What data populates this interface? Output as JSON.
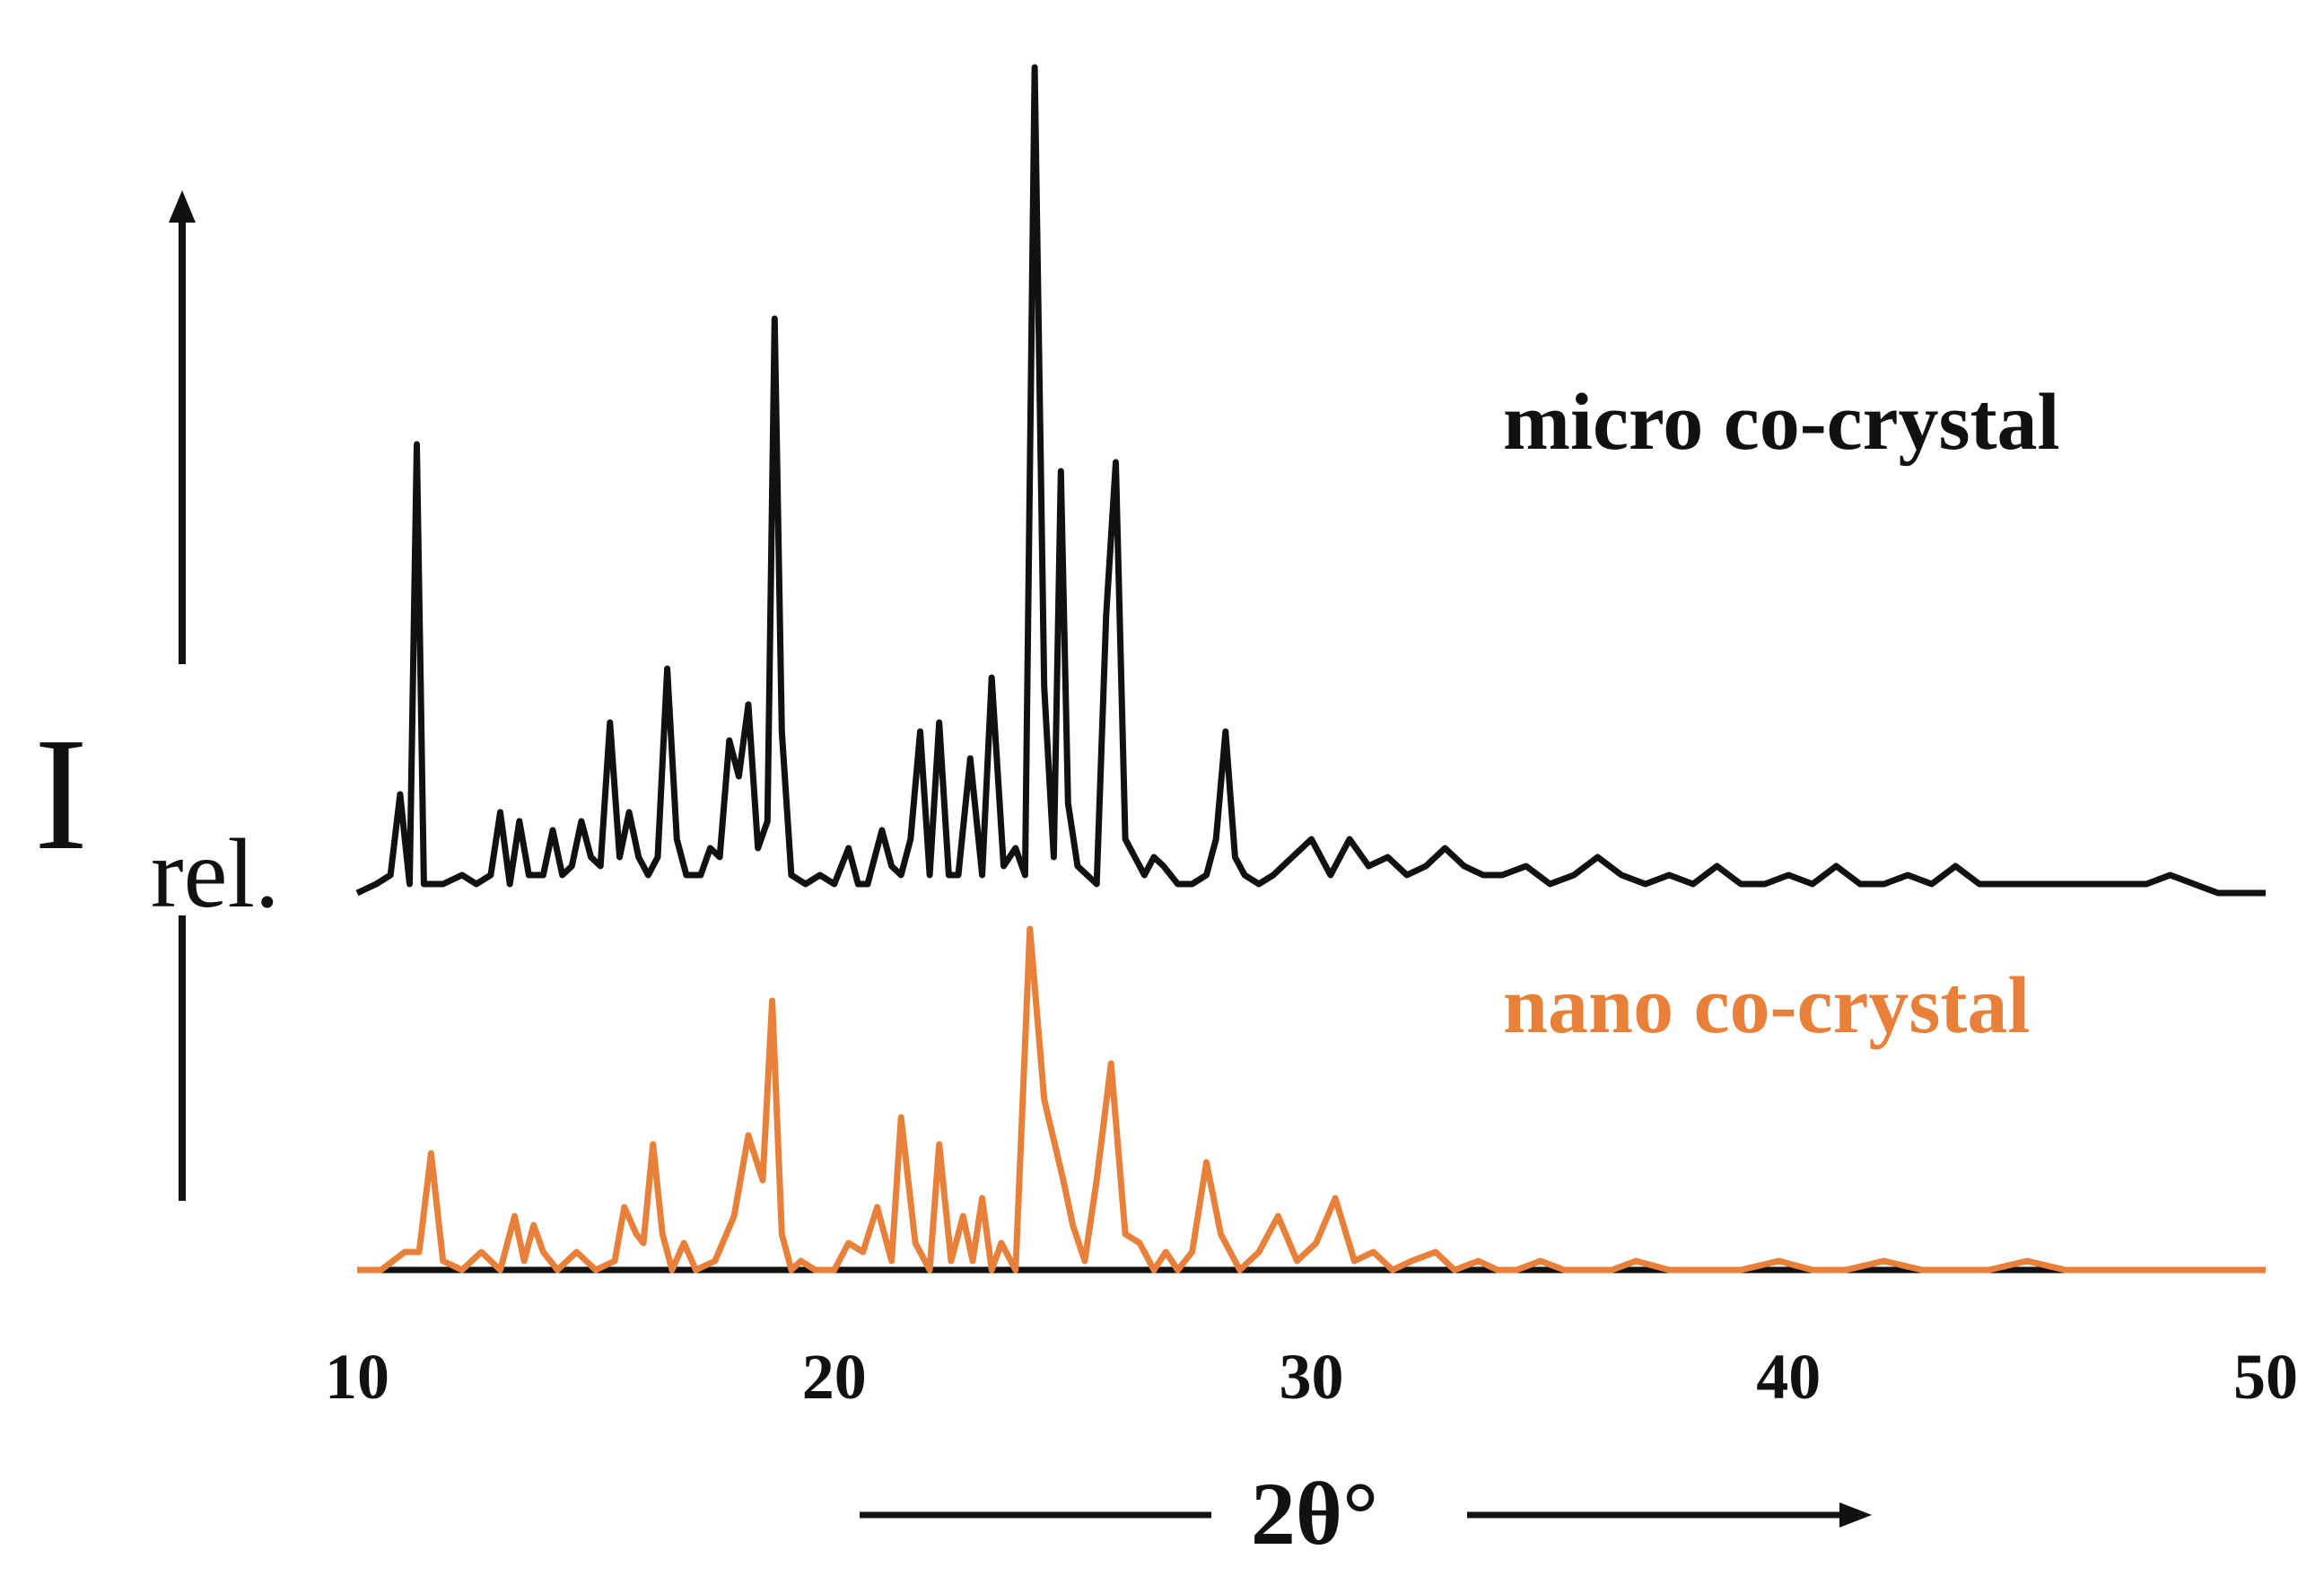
{
  "chart_data": {
    "type": "line",
    "title": "",
    "xlabel": "2θ°",
    "ylabel": {
      "main": "I",
      "sub": "rel."
    },
    "xlim": [
      10,
      50
    ],
    "xticks": [
      "10",
      "20",
      "30",
      "40",
      "50"
    ],
    "xtick_values": [
      10,
      20,
      30,
      40,
      50
    ],
    "grid": false,
    "legend_placement": "inline-right",
    "series": [
      {
        "name": "micro co-crystal",
        "color": "#111111",
        "x": [
          10.0,
          10.4,
          10.7,
          10.9,
          11.1,
          11.25,
          11.4,
          11.6,
          11.8,
          12.2,
          12.5,
          12.8,
          13.0,
          13.2,
          13.4,
          13.6,
          13.9,
          14.1,
          14.3,
          14.5,
          14.7,
          14.9,
          15.1,
          15.3,
          15.5,
          15.7,
          15.9,
          16.1,
          16.3,
          16.5,
          16.7,
          16.9,
          17.2,
          17.4,
          17.6,
          17.8,
          18.0,
          18.2,
          18.4,
          18.6,
          18.75,
          18.9,
          19.1,
          19.4,
          19.7,
          20.0,
          20.3,
          20.5,
          20.7,
          21.0,
          21.2,
          21.4,
          21.6,
          21.8,
          22.0,
          22.2,
          22.4,
          22.6,
          22.85,
          23.1,
          23.3,
          23.55,
          23.8,
          24.0,
          24.2,
          24.4,
          24.6,
          24.75,
          24.9,
          25.1,
          25.3,
          25.5,
          25.7,
          25.9,
          26.1,
          26.3,
          26.5,
          26.7,
          26.9,
          27.2,
          27.5,
          27.8,
          28.0,
          28.2,
          28.4,
          28.6,
          28.9,
          29.2,
          29.6,
          30.0,
          30.4,
          30.8,
          31.2,
          31.6,
          32.0,
          32.4,
          32.8,
          33.2,
          33.6,
          34.0,
          34.5,
          35.0,
          35.5,
          36.0,
          36.5,
          37.0,
          37.5,
          38.0,
          38.5,
          39.0,
          39.5,
          40.0,
          40.5,
          41.0,
          41.5,
          42.0,
          42.5,
          43.0,
          43.5,
          44.0,
          44.5,
          45.0,
          45.5,
          46.0,
          46.5,
          47.0,
          47.5,
          48.0,
          48.5,
          49.0,
          49.5,
          50.0
        ],
        "y": [
          0.42,
          0.43,
          0.44,
          0.53,
          0.43,
          0.92,
          0.43,
          0.43,
          0.43,
          0.44,
          0.43,
          0.44,
          0.51,
          0.43,
          0.5,
          0.44,
          0.44,
          0.49,
          0.44,
          0.45,
          0.5,
          0.46,
          0.45,
          0.61,
          0.46,
          0.51,
          0.46,
          0.44,
          0.46,
          0.67,
          0.48,
          0.44,
          0.44,
          0.47,
          0.46,
          0.59,
          0.55,
          0.63,
          0.47,
          0.5,
          1.06,
          0.6,
          0.44,
          0.43,
          0.44,
          0.43,
          0.47,
          0.43,
          0.43,
          0.49,
          0.45,
          0.44,
          0.48,
          0.6,
          0.44,
          0.61,
          0.44,
          0.44,
          0.57,
          0.44,
          0.66,
          0.45,
          0.47,
          0.44,
          1.34,
          0.65,
          0.46,
          0.89,
          0.52,
          0.45,
          0.44,
          0.43,
          0.73,
          0.9,
          0.48,
          0.46,
          0.44,
          0.46,
          0.45,
          0.43,
          0.43,
          0.44,
          0.48,
          0.6,
          0.46,
          0.44,
          0.43,
          0.44,
          0.46,
          0.48,
          0.44,
          0.48,
          0.45,
          0.46,
          0.44,
          0.45,
          0.47,
          0.45,
          0.44,
          0.44,
          0.45,
          0.43,
          0.44,
          0.46,
          0.44,
          0.43,
          0.44,
          0.43,
          0.45,
          0.43,
          0.43,
          0.44,
          0.43,
          0.45,
          0.43,
          0.43,
          0.44,
          0.43,
          0.45,
          0.43,
          0.43,
          0.43,
          0.43,
          0.43,
          0.43,
          0.43,
          0.43,
          0.44,
          0.43,
          0.42,
          0.42,
          0.42
        ]
      },
      {
        "name": "nano co-crystal",
        "color": "#e8803a",
        "x": [
          10.0,
          10.5,
          11.0,
          11.3,
          11.55,
          11.8,
          12.2,
          12.6,
          13.0,
          13.3,
          13.5,
          13.7,
          13.9,
          14.2,
          14.6,
          15.0,
          15.4,
          15.6,
          15.85,
          16.0,
          16.2,
          16.4,
          16.6,
          16.85,
          17.1,
          17.5,
          17.9,
          18.2,
          18.5,
          18.7,
          18.9,
          19.1,
          19.3,
          19.6,
          20.0,
          20.3,
          20.6,
          20.9,
          21.2,
          21.4,
          21.7,
          22.0,
          22.2,
          22.45,
          22.7,
          22.9,
          23.1,
          23.3,
          23.5,
          23.8,
          24.1,
          24.4,
          24.8,
          25.0,
          25.25,
          25.5,
          25.8,
          26.1,
          26.4,
          26.7,
          26.95,
          27.2,
          27.5,
          27.8,
          28.1,
          28.5,
          28.9,
          29.3,
          29.7,
          30.1,
          30.5,
          30.9,
          31.3,
          31.7,
          32.1,
          32.6,
          33.0,
          33.5,
          33.9,
          34.3,
          34.8,
          35.3,
          35.8,
          36.3,
          36.8,
          37.5,
          38.2,
          39.0,
          39.8,
          40.5,
          41.2,
          42.0,
          42.8,
          43.5,
          44.2,
          45.0,
          45.8,
          46.5,
          47.3,
          48.0,
          48.8,
          49.5,
          50.0
        ],
        "y": [
          0.0,
          0.0,
          0.02,
          0.02,
          0.13,
          0.01,
          0.0,
          0.02,
          0.0,
          0.06,
          0.01,
          0.05,
          0.02,
          0.0,
          0.02,
          0.0,
          0.01,
          0.07,
          0.04,
          0.03,
          0.14,
          0.04,
          0.0,
          0.03,
          0.0,
          0.01,
          0.06,
          0.15,
          0.1,
          0.3,
          0.04,
          0.0,
          0.01,
          0.0,
          0.0,
          0.03,
          0.02,
          0.07,
          0.01,
          0.17,
          0.03,
          0.0,
          0.14,
          0.01,
          0.06,
          0.01,
          0.08,
          0.0,
          0.03,
          0.0,
          0.38,
          0.19,
          0.1,
          0.05,
          0.01,
          0.1,
          0.23,
          0.04,
          0.03,
          0.0,
          0.02,
          0.0,
          0.02,
          0.12,
          0.04,
          0.0,
          0.02,
          0.06,
          0.01,
          0.03,
          0.08,
          0.01,
          0.02,
          0.0,
          0.01,
          0.02,
          0.0,
          0.01,
          0.0,
          0.0,
          0.01,
          0.0,
          0.0,
          0.0,
          0.01,
          0.0,
          0.0,
          0.0,
          0.01,
          0.0,
          0.0,
          0.01,
          0.0,
          0.0,
          0.0,
          0.01,
          0.0,
          0.0,
          0.0,
          0.0,
          0.0,
          0.0,
          0.0
        ]
      }
    ]
  }
}
